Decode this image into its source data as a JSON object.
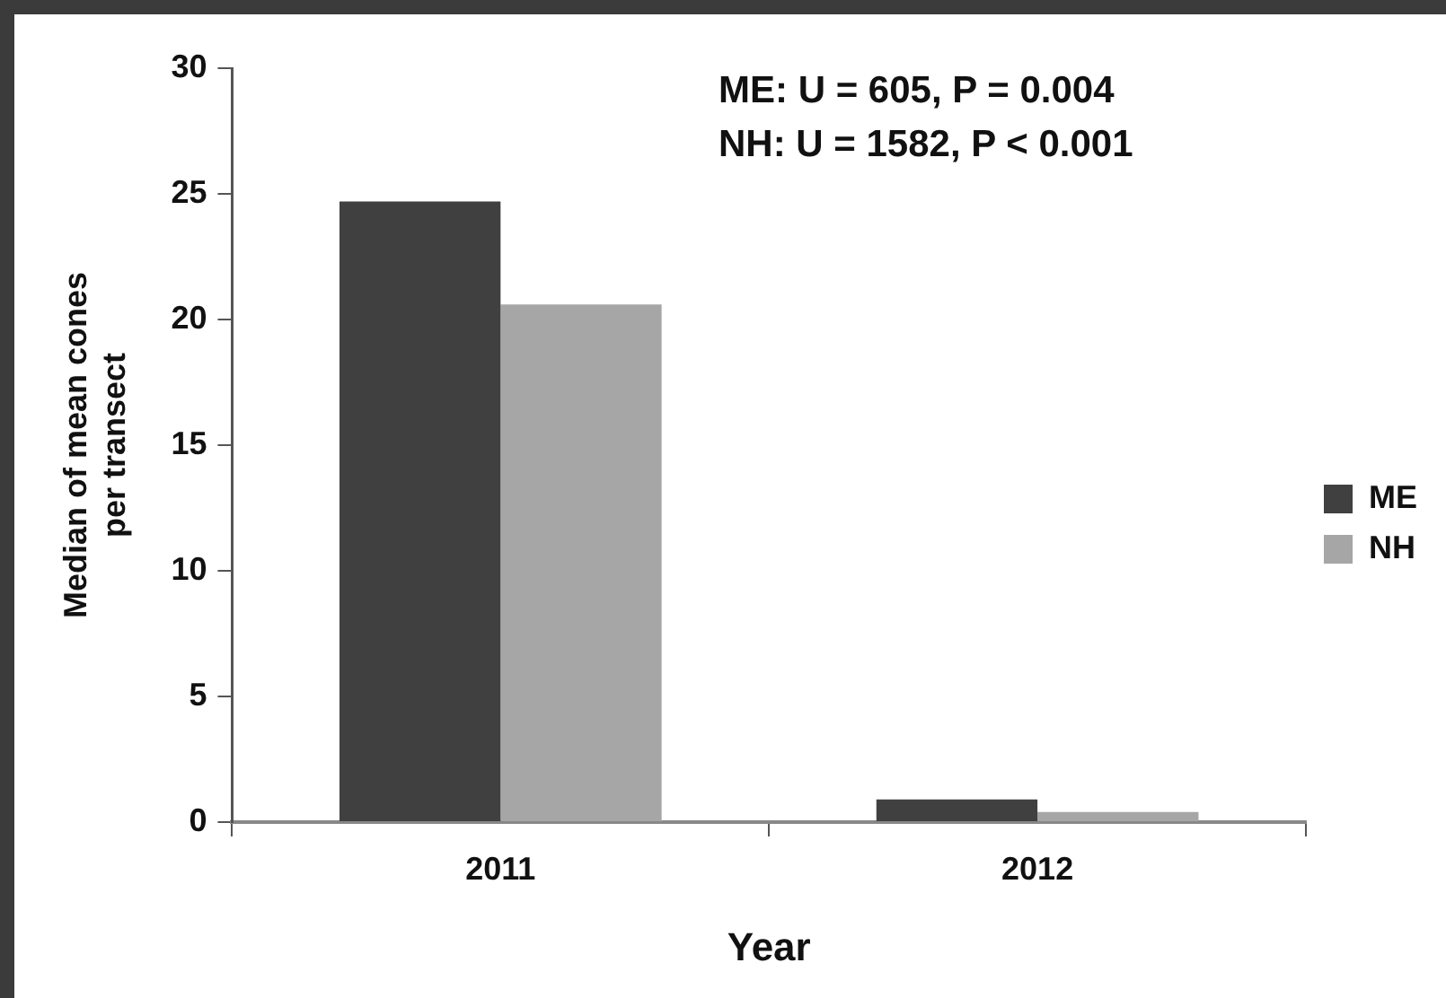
{
  "chart_data": {
    "type": "bar",
    "xlabel": "Year",
    "ylabel": "Median of mean cones\nper transect",
    "categories": [
      "2011",
      "2012"
    ],
    "series": [
      {
        "name": "ME",
        "color": "#404040",
        "values": [
          24.7,
          0.9
        ]
      },
      {
        "name": "NH",
        "color": "#a6a6a6",
        "values": [
          20.6,
          0.4
        ]
      }
    ],
    "ylim": [
      0,
      30
    ],
    "yticks": [
      0,
      5,
      10,
      15,
      20,
      25,
      30
    ],
    "grid": false,
    "legend": "right",
    "annotations": [
      "ME: U = 605, P = 0.004",
      "NH: U = 1582, P < 0.001"
    ]
  }
}
